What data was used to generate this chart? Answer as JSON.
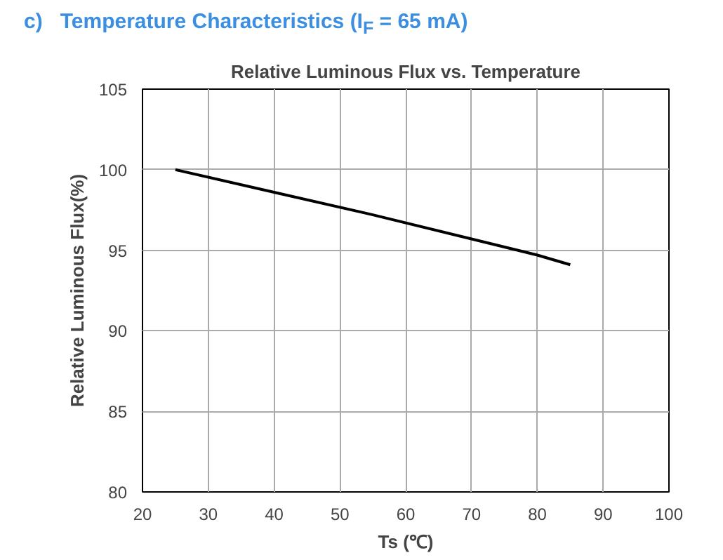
{
  "chart_data": {
    "type": "line",
    "title": "c)   Temperature Characteristics (I$_{F}$ = 65 mA)",
    "subtitle": "Relative Luminous Flux vs. Temperature",
    "xlabel": "Ts (℃)",
    "ylabel": "Relative Luminous Flux(%)",
    "x": [
      25,
      40,
      55,
      70,
      80,
      85
    ],
    "series": [
      {
        "color": "#000000",
        "values": [
          100,
          98.6,
          97.2,
          95.7,
          94.7,
          94.1
        ]
      }
    ],
    "xlim": [
      20,
      100
    ],
    "ylim": [
      80,
      105
    ],
    "xticks": [
      20,
      30,
      40,
      50,
      60,
      70,
      80,
      90,
      100
    ],
    "yticks": [
      80,
      85,
      90,
      95,
      100,
      105
    ],
    "grid": true,
    "marker": "none",
    "line_style": "solid"
  }
}
